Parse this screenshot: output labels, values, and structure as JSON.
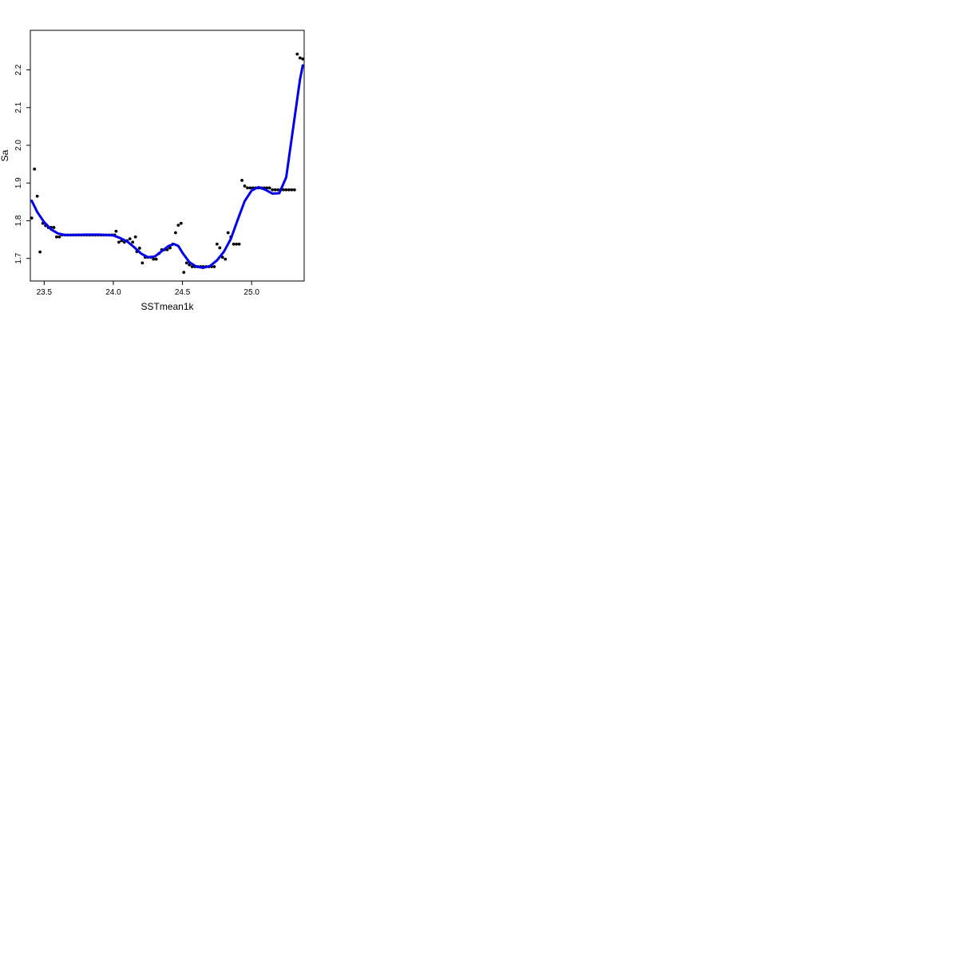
{
  "chart_data": {
    "type": "scatter",
    "title": "",
    "xlabel": "SSTmean1k",
    "ylabel": "Sa",
    "xlim": [
      23.4,
      25.38
    ],
    "ylim": [
      1.64,
      2.305
    ],
    "xticks": [
      23.5,
      24.0,
      24.5,
      25.0
    ],
    "xtick_labels": [
      "23.5",
      "24.0",
      "24.5",
      "25.0"
    ],
    "yticks": [
      1.7,
      1.8,
      1.9,
      2.0,
      2.1,
      2.2
    ],
    "ytick_labels": [
      "1.7",
      "1.8",
      "1.9",
      "2.0",
      "2.1",
      "2.2"
    ],
    "grid": false,
    "legend": "none",
    "series": [
      {
        "kind": "points",
        "color": "#000000",
        "points": [
          [
            23.41,
            1.807
          ],
          [
            23.43,
            1.937
          ],
          [
            23.45,
            1.865
          ],
          [
            23.47,
            1.717
          ],
          [
            23.49,
            1.793
          ],
          [
            23.51,
            1.787
          ],
          [
            23.53,
            1.782
          ],
          [
            23.55,
            1.782
          ],
          [
            23.57,
            1.782
          ],
          [
            23.59,
            1.757
          ],
          [
            23.61,
            1.757
          ],
          [
            23.63,
            1.762
          ],
          [
            23.65,
            1.762
          ],
          [
            23.67,
            1.762
          ],
          [
            23.69,
            1.762
          ],
          [
            23.71,
            1.762
          ],
          [
            23.73,
            1.762
          ],
          [
            23.75,
            1.762
          ],
          [
            23.77,
            1.762
          ],
          [
            23.79,
            1.762
          ],
          [
            23.81,
            1.762
          ],
          [
            23.83,
            1.762
          ],
          [
            23.85,
            1.762
          ],
          [
            23.87,
            1.762
          ],
          [
            23.89,
            1.762
          ],
          [
            23.91,
            1.762
          ],
          [
            23.93,
            1.762
          ],
          [
            23.95,
            1.762
          ],
          [
            23.97,
            1.762
          ],
          [
            23.99,
            1.762
          ],
          [
            24.01,
            1.762
          ],
          [
            24.02,
            1.772
          ],
          [
            24.04,
            1.743
          ],
          [
            24.06,
            1.747
          ],
          [
            24.08,
            1.743
          ],
          [
            24.1,
            1.747
          ],
          [
            24.12,
            1.752
          ],
          [
            24.14,
            1.743
          ],
          [
            24.16,
            1.757
          ],
          [
            24.17,
            1.718
          ],
          [
            24.19,
            1.727
          ],
          [
            24.21,
            1.688
          ],
          [
            24.23,
            1.703
          ],
          [
            24.25,
            1.703
          ],
          [
            24.27,
            1.703
          ],
          [
            24.29,
            1.698
          ],
          [
            24.31,
            1.698
          ],
          [
            24.33,
            1.713
          ],
          [
            24.35,
            1.723
          ],
          [
            24.37,
            1.723
          ],
          [
            24.39,
            1.723
          ],
          [
            24.41,
            1.728
          ],
          [
            24.43,
            1.738
          ],
          [
            24.45,
            1.768
          ],
          [
            24.47,
            1.788
          ],
          [
            24.49,
            1.793
          ],
          [
            24.51,
            1.663
          ],
          [
            24.53,
            1.688
          ],
          [
            24.55,
            1.683
          ],
          [
            24.57,
            1.678
          ],
          [
            24.59,
            1.678
          ],
          [
            24.61,
            1.678
          ],
          [
            24.63,
            1.678
          ],
          [
            24.65,
            1.678
          ],
          [
            24.67,
            1.678
          ],
          [
            24.69,
            1.678
          ],
          [
            24.71,
            1.678
          ],
          [
            24.73,
            1.678
          ],
          [
            24.75,
            1.738
          ],
          [
            24.77,
            1.728
          ],
          [
            24.79,
            1.703
          ],
          [
            24.81,
            1.698
          ],
          [
            24.83,
            1.768
          ],
          [
            24.85,
            1.757
          ],
          [
            24.87,
            1.738
          ],
          [
            24.89,
            1.738
          ],
          [
            24.91,
            1.738
          ],
          [
            24.93,
            1.907
          ],
          [
            24.95,
            1.892
          ],
          [
            24.97,
            1.887
          ],
          [
            24.99,
            1.887
          ],
          [
            25.01,
            1.887
          ],
          [
            25.03,
            1.887
          ],
          [
            25.05,
            1.887
          ],
          [
            25.07,
            1.887
          ],
          [
            25.09,
            1.887
          ],
          [
            25.11,
            1.887
          ],
          [
            25.13,
            1.887
          ],
          [
            25.15,
            1.882
          ],
          [
            25.17,
            1.882
          ],
          [
            25.19,
            1.882
          ],
          [
            25.21,
            1.882
          ],
          [
            25.23,
            1.882
          ],
          [
            25.25,
            1.882
          ],
          [
            25.27,
            1.882
          ],
          [
            25.29,
            1.882
          ],
          [
            25.31,
            1.882
          ],
          [
            25.33,
            2.242
          ],
          [
            25.35,
            2.232
          ],
          [
            25.37,
            2.229
          ]
        ]
      },
      {
        "kind": "smooth-line",
        "color": "#0000ee",
        "points": [
          [
            23.41,
            1.853
          ],
          [
            23.45,
            1.823
          ],
          [
            23.5,
            1.796
          ],
          [
            23.55,
            1.777
          ],
          [
            23.6,
            1.766
          ],
          [
            23.65,
            1.762
          ],
          [
            23.7,
            1.762
          ],
          [
            23.8,
            1.763
          ],
          [
            23.9,
            1.763
          ],
          [
            24.0,
            1.761
          ],
          [
            24.05,
            1.754
          ],
          [
            24.1,
            1.745
          ],
          [
            24.15,
            1.73
          ],
          [
            24.2,
            1.713
          ],
          [
            24.25,
            1.703
          ],
          [
            24.3,
            1.705
          ],
          [
            24.35,
            1.719
          ],
          [
            24.4,
            1.733
          ],
          [
            24.44,
            1.738
          ],
          [
            24.47,
            1.733
          ],
          [
            24.5,
            1.715
          ],
          [
            24.55,
            1.69
          ],
          [
            24.6,
            1.678
          ],
          [
            24.65,
            1.675
          ],
          [
            24.7,
            1.68
          ],
          [
            24.75,
            1.695
          ],
          [
            24.8,
            1.718
          ],
          [
            24.85,
            1.752
          ],
          [
            24.9,
            1.803
          ],
          [
            24.95,
            1.852
          ],
          [
            25.0,
            1.88
          ],
          [
            25.05,
            1.889
          ],
          [
            25.1,
            1.882
          ],
          [
            25.15,
            1.872
          ],
          [
            25.2,
            1.873
          ],
          [
            25.25,
            1.915
          ],
          [
            25.3,
            2.045
          ],
          [
            25.35,
            2.175
          ],
          [
            25.37,
            2.212
          ]
        ]
      }
    ]
  }
}
